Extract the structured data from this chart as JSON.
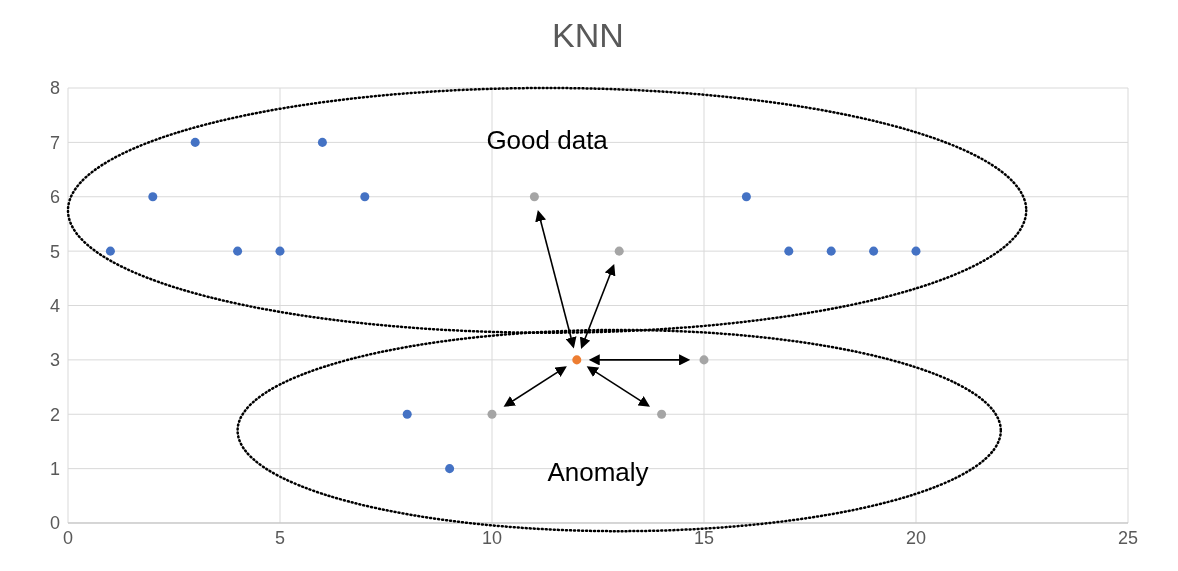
{
  "chart_data": {
    "type": "scatter",
    "title": "KNN",
    "marker": "circle",
    "grid": true,
    "xlim": [
      0,
      25
    ],
    "xticks": [
      0,
      5,
      10,
      15,
      20,
      25
    ],
    "ylim": [
      0,
      8
    ],
    "yticks": [
      0,
      1,
      2,
      3,
      4,
      5,
      6,
      7,
      8
    ],
    "annotations": [
      "Good data",
      "Anomaly"
    ],
    "series": [
      {
        "color": "#4472c4",
        "x": [
          1,
          2,
          3,
          4,
          5,
          6,
          7,
          16,
          17,
          18,
          19,
          20,
          8,
          9
        ],
        "values": [
          5,
          6,
          7,
          5,
          5,
          7,
          6,
          6,
          5,
          5,
          5,
          5,
          2,
          1
        ]
      },
      {
        "color": "#a5a5a5",
        "x": [
          11,
          13,
          15,
          14,
          10
        ],
        "values": [
          6,
          5,
          3,
          2,
          2
        ]
      },
      {
        "color": "#ed7d31",
        "x": [
          12
        ],
        "values": [
          3
        ]
      }
    ]
  }
}
